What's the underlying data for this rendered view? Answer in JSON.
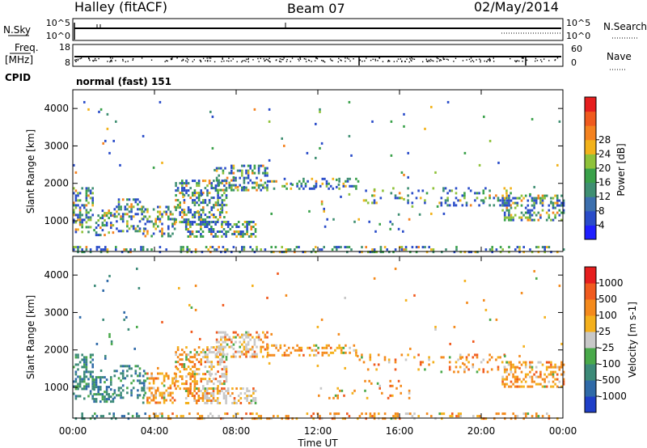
{
  "header": {
    "station": "Halley (fitACF)",
    "beam": "Beam 07",
    "date": "02/May/2014"
  },
  "side_labels": {
    "nsky": "N.Sky",
    "nsearch": "N.Search",
    "freq_line1": "Freq.",
    "freq_line2": "[MHz]",
    "nave": "Nave",
    "cpid": "CPID"
  },
  "strip_ticks": {
    "noise_left": [
      "10^5",
      "10^0"
    ],
    "noise_right": [
      "10^5",
      "10^0"
    ],
    "freq_left": [
      "18",
      "8"
    ],
    "freq_right": [
      "60",
      "0"
    ]
  },
  "cpid_text": "normal (fast) 151",
  "colors": {
    "power": [
      "#1f1fff",
      "#2a4cc9",
      "#3c6fae",
      "#3f8f72",
      "#3aa14a",
      "#8fc23a",
      "#f2b21b",
      "#f4821f",
      "#f05a1e",
      "#e61e1e"
    ],
    "velocity": [
      "#1f3fc8",
      "#2f6aa8",
      "#3c8a78",
      "#49a94a",
      "#c8c8c8",
      "#f4b01c",
      "#f48a1c",
      "#f05a1e",
      "#e61e1e"
    ]
  },
  "chart_data": [
    {
      "type": "heatmap",
      "title": "",
      "quantity": "Power",
      "ylabel": "Slant Range [km]",
      "xlabel": "",
      "x_ticks": [
        "00:00",
        "04:00",
        "08:00",
        "12:00",
        "16:00",
        "20:00",
        "00:00"
      ],
      "y_ticks": [
        1000,
        2000,
        3000,
        4000
      ],
      "ylim": [
        180,
        4500
      ],
      "xlim_hours": [
        0,
        24
      ],
      "colorbar": {
        "label": "Power [dB]",
        "ticks": [
          "4",
          "8",
          "12",
          "16",
          "20",
          "24",
          "28"
        ],
        "range": [
          0,
          30
        ]
      }
    },
    {
      "type": "heatmap",
      "title": "",
      "quantity": "Velocity",
      "ylabel": "Slant Range [km]",
      "xlabel": "Time UT",
      "x_ticks": [
        "00:00",
        "04:00",
        "08:00",
        "12:00",
        "16:00",
        "20:00",
        "00:00"
      ],
      "y_ticks": [
        1000,
        2000,
        3000,
        4000
      ],
      "ylim": [
        180,
        4500
      ],
      "xlim_hours": [
        0,
        24
      ],
      "colorbar": {
        "label": "Velocity [m s-1]",
        "ticks": [
          "1000",
          "500",
          "100",
          "25",
          "-25",
          "-100",
          "-500",
          "-1000"
        ],
        "range": [
          -1250,
          1250
        ]
      }
    }
  ]
}
